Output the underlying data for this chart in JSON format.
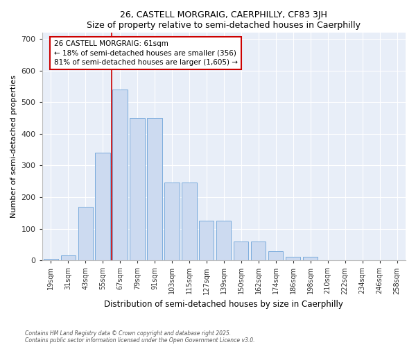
{
  "title1": "26, CASTELL MORGRAIG, CAERPHILLY, CF83 3JH",
  "title2": "Size of property relative to semi-detached houses in Caerphilly",
  "xlabel": "Distribution of semi-detached houses by size in Caerphilly",
  "ylabel": "Number of semi-detached properties",
  "bar_labels": [
    "19sqm",
    "31sqm",
    "43sqm",
    "55sqm",
    "67sqm",
    "79sqm",
    "91sqm",
    "103sqm",
    "115sqm",
    "127sqm",
    "139sqm",
    "150sqm",
    "162sqm",
    "174sqm",
    "186sqm",
    "198sqm",
    "210sqm",
    "222sqm",
    "234sqm",
    "246sqm",
    "258sqm"
  ],
  "bar_values": [
    5,
    15,
    170,
    340,
    540,
    450,
    450,
    245,
    245,
    125,
    125,
    60,
    60,
    28,
    12,
    12,
    0,
    0,
    0,
    0,
    0
  ],
  "bar_color": "#ccdaf0",
  "bar_edgecolor": "#7aabdc",
  "vline_x_index": 3,
  "annotation_line1": "26 CASTELL MORGRAIG: 61sqm",
  "annotation_line2": "← 18% of semi-detached houses are smaller (356)",
  "annotation_line3": "81% of semi-detached houses are larger (1,605) →",
  "annotation_box_facecolor": "#ffffff",
  "annotation_box_edgecolor": "#cc0000",
  "vline_color": "#cc0000",
  "fig_bg_color": "#ffffff",
  "plot_bg_color": "#e8eef8",
  "ylim": [
    0,
    720
  ],
  "yticks": [
    0,
    100,
    200,
    300,
    400,
    500,
    600,
    700
  ],
  "footer1": "Contains HM Land Registry data © Crown copyright and database right 2025.",
  "footer2": "Contains public sector information licensed under the Open Government Licence v3.0."
}
